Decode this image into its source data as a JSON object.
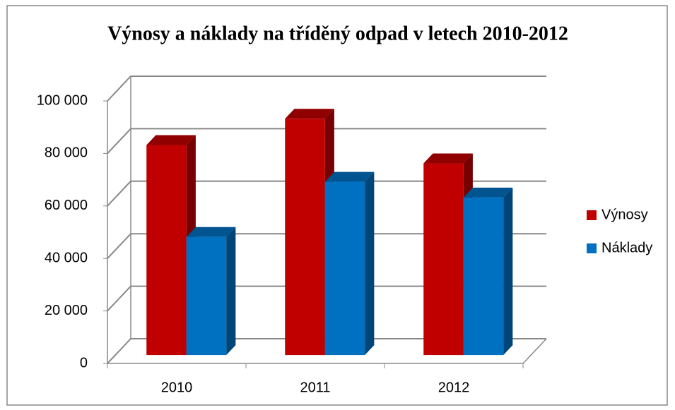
{
  "chart_data": {
    "type": "bar3d",
    "title": "Výnosy a náklady na tříděný odpad v letech 2010-2012",
    "categories": [
      "2010",
      "2011",
      "2012"
    ],
    "series": [
      {
        "name": "Výnosy",
        "color": "#c00000",
        "values": [
          80000,
          90000,
          73000
        ]
      },
      {
        "name": "Náklady",
        "color": "#0070c0",
        "values": [
          45000,
          66000,
          60000
        ]
      }
    ],
    "ylim": [
      0,
      100000
    ],
    "yticks": [
      {
        "value": 0,
        "label": "0"
      },
      {
        "value": 20000,
        "label": "20 000"
      },
      {
        "value": 40000,
        "label": "40 000"
      },
      {
        "value": 60000,
        "label": "60 000"
      },
      {
        "value": 80000,
        "label": "80 000"
      },
      {
        "value": 100000,
        "label": "100 000"
      }
    ],
    "grid": true,
    "legend": "right"
  }
}
